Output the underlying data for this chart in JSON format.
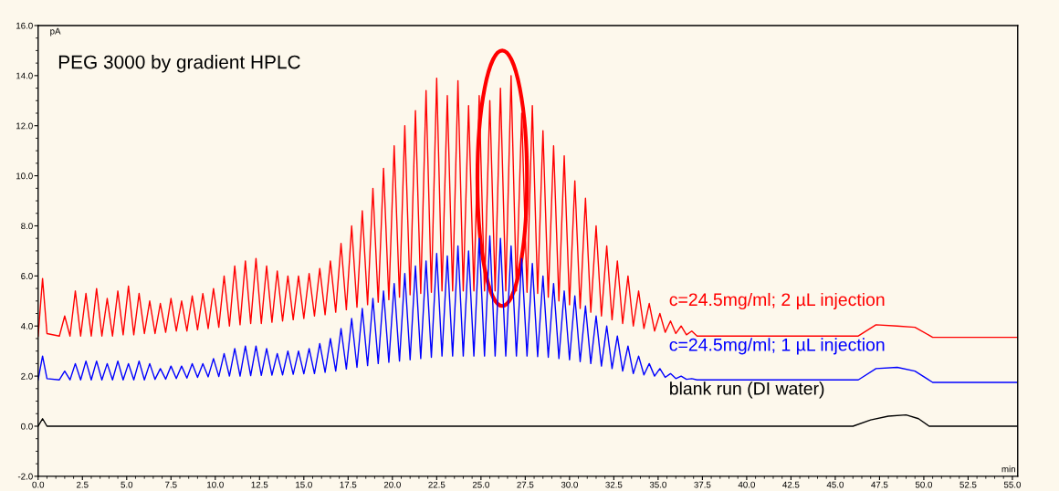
{
  "chart_data": {
    "type": "line",
    "title": "PEG 3000 by gradient HPLC",
    "xlabel": "min",
    "ylabel": "pA",
    "xlim": [
      0,
      55.3
    ],
    "ylim": [
      -2,
      16
    ],
    "xticks": [
      {
        "value": 0,
        "label": "0.0"
      },
      {
        "value": 2.5,
        "label": "2.5"
      },
      {
        "value": 5,
        "label": "5.0"
      },
      {
        "value": 7.5,
        "label": "7.5"
      },
      {
        "value": 10,
        "label": "10.0"
      },
      {
        "value": 12.5,
        "label": "12.5"
      },
      {
        "value": 15,
        "label": "15.0"
      },
      {
        "value": 17.5,
        "label": "17.5"
      },
      {
        "value": 20,
        "label": "20.0"
      },
      {
        "value": 22.5,
        "label": "22.5"
      },
      {
        "value": 25,
        "label": "25.0"
      },
      {
        "value": 27.5,
        "label": "27.5"
      },
      {
        "value": 30,
        "label": "30.0"
      },
      {
        "value": 32.5,
        "label": "32.5"
      },
      {
        "value": 35,
        "label": "35.0"
      },
      {
        "value": 37.5,
        "label": "37.5"
      },
      {
        "value": 40,
        "label": "40.0"
      },
      {
        "value": 42.5,
        "label": "42.5"
      },
      {
        "value": 45,
        "label": "45.0"
      },
      {
        "value": 47.5,
        "label": "47.5"
      },
      {
        "value": 50,
        "label": "50.0"
      },
      {
        "value": 52.5,
        "label": "52.5"
      },
      {
        "value": 55,
        "label": "55.0"
      }
    ],
    "yticks": [
      {
        "value": -2,
        "label": "-2.0"
      },
      {
        "value": 0,
        "label": "0.0"
      },
      {
        "value": 2,
        "label": "2.0"
      },
      {
        "value": 4,
        "label": "4.0"
      },
      {
        "value": 6,
        "label": "6.0"
      },
      {
        "value": 8,
        "label": "8.0"
      },
      {
        "value": 10,
        "label": "10.0"
      },
      {
        "value": 12,
        "label": "12.0"
      },
      {
        "value": 14,
        "label": "14.0"
      },
      {
        "value": 16,
        "label": "16.0"
      }
    ],
    "grid": false,
    "legend": false,
    "marker": "none",
    "line_style": "solid",
    "x": [
      0,
      0.25,
      0.5,
      1.2,
      1.5,
      1.8,
      2.1,
      2.4,
      2.7,
      3.0,
      3.3,
      3.6,
      3.9,
      4.2,
      4.5,
      4.8,
      5.1,
      5.4,
      5.7,
      6.0,
      6.3,
      6.6,
      6.9,
      7.2,
      7.5,
      7.8,
      8.1,
      8.4,
      8.7,
      9.0,
      9.3,
      9.6,
      9.9,
      10.2,
      10.5,
      10.8,
      11.1,
      11.4,
      11.7,
      12.0,
      12.3,
      12.6,
      12.9,
      13.2,
      13.5,
      13.8,
      14.1,
      14.4,
      14.7,
      15.0,
      15.3,
      15.6,
      15.9,
      16.2,
      16.5,
      16.8,
      17.1,
      17.4,
      17.7,
      18.0,
      18.3,
      18.6,
      18.9,
      19.2,
      19.5,
      19.8,
      20.1,
      20.4,
      20.7,
      21.0,
      21.3,
      21.6,
      21.9,
      22.2,
      22.5,
      22.8,
      23.1,
      23.4,
      23.7,
      24.0,
      24.3,
      24.6,
      24.9,
      25.2,
      25.5,
      25.8,
      26.1,
      26.4,
      26.7,
      27.0,
      27.3,
      27.6,
      27.9,
      28.2,
      28.5,
      28.8,
      29.1,
      29.4,
      29.7,
      30.0,
      30.3,
      30.6,
      30.9,
      31.2,
      31.5,
      31.8,
      32.1,
      32.4,
      32.7,
      33.0,
      33.3,
      33.6,
      33.9,
      34.2,
      34.5,
      34.8,
      35.1,
      35.4,
      35.7,
      36.0,
      36.3,
      36.6,
      36.9,
      37.2,
      40.0,
      46.3,
      47.3,
      48.5,
      49.5,
      50.5,
      55.3
    ],
    "series": [
      {
        "name": "c=24.5mg/ml; 2 µL injection",
        "color": "#ff0000",
        "values": [
          3.6,
          5.9,
          3.7,
          3.6,
          4.4,
          3.6,
          5.4,
          3.6,
          5.3,
          3.6,
          5.5,
          3.6,
          5.1,
          3.6,
          5.4,
          3.65,
          5.6,
          3.65,
          5.3,
          3.7,
          5.0,
          3.7,
          4.9,
          3.75,
          5.1,
          3.8,
          5.0,
          3.8,
          5.2,
          3.85,
          5.3,
          3.9,
          5.5,
          3.95,
          6.0,
          4.0,
          6.4,
          4.05,
          6.6,
          4.1,
          6.7,
          4.1,
          6.4,
          4.15,
          6.2,
          4.2,
          6.0,
          4.25,
          6.0,
          4.3,
          6.1,
          4.4,
          6.3,
          4.45,
          6.6,
          4.55,
          7.3,
          4.65,
          8.0,
          4.75,
          8.6,
          4.85,
          9.5,
          4.95,
          10.3,
          5.05,
          11.2,
          5.15,
          12.0,
          5.25,
          12.6,
          5.3,
          13.4,
          5.35,
          13.9,
          5.4,
          13.2,
          5.4,
          13.8,
          5.4,
          12.8,
          5.4,
          13.2,
          5.4,
          13.0,
          5.4,
          13.5,
          5.4,
          14.0,
          5.4,
          12.5,
          5.35,
          12.8,
          5.3,
          11.8,
          5.15,
          11.2,
          5.0,
          10.8,
          4.85,
          9.8,
          4.7,
          9.1,
          4.55,
          8.0,
          4.4,
          7.2,
          4.25,
          6.6,
          4.1,
          6.0,
          4.0,
          5.4,
          3.9,
          4.9,
          3.8,
          4.5,
          3.75,
          4.2,
          3.7,
          4.0,
          3.65,
          3.8,
          3.6,
          3.6,
          3.6,
          4.05,
          4.0,
          3.95,
          3.55,
          3.55
        ]
      },
      {
        "name": "c=24.5mg/ml; 1 µL injection",
        "color": "#0000ff",
        "values": [
          1.85,
          2.8,
          1.9,
          1.85,
          2.2,
          1.85,
          2.5,
          1.85,
          2.6,
          1.85,
          2.6,
          1.85,
          2.5,
          1.85,
          2.6,
          1.85,
          2.5,
          1.85,
          2.6,
          1.85,
          2.5,
          1.87,
          2.3,
          1.88,
          2.4,
          1.9,
          2.4,
          1.92,
          2.5,
          1.95,
          2.5,
          1.97,
          2.7,
          1.98,
          2.9,
          2.0,
          3.1,
          2.0,
          3.2,
          2.02,
          3.2,
          2.03,
          3.1,
          2.04,
          2.9,
          2.05,
          3.0,
          2.07,
          3.0,
          2.09,
          3.1,
          2.1,
          3.3,
          2.15,
          3.5,
          2.2,
          3.9,
          2.28,
          4.3,
          2.35,
          4.7,
          2.42,
          5.1,
          2.5,
          5.4,
          2.55,
          5.7,
          2.6,
          6.1,
          2.65,
          6.4,
          2.7,
          6.6,
          2.75,
          6.9,
          2.8,
          6.8,
          2.8,
          7.2,
          2.8,
          7.0,
          2.8,
          7.5,
          2.8,
          7.6,
          2.8,
          7.5,
          2.8,
          7.2,
          2.8,
          6.7,
          2.8,
          6.5,
          2.78,
          6.0,
          2.75,
          5.7,
          2.7,
          5.4,
          2.65,
          5.2,
          2.58,
          4.8,
          2.5,
          4.4,
          2.4,
          4.0,
          2.3,
          3.6,
          2.2,
          3.2,
          2.1,
          2.8,
          2.05,
          2.5,
          2.0,
          2.3,
          1.95,
          2.1,
          1.9,
          2.0,
          1.87,
          1.9,
          1.85,
          1.85,
          1.85,
          2.3,
          2.35,
          2.2,
          1.75,
          1.75
        ]
      },
      {
        "name": "blank run (DI water)",
        "color": "#000000",
        "x": [
          0,
          0.25,
          0.5,
          46.0,
          47.0,
          48.0,
          49.0,
          49.7,
          50.3,
          55.3
        ],
        "values": [
          0,
          0.3,
          0,
          0,
          0.25,
          0.4,
          0.45,
          0.3,
          0,
          0
        ]
      }
    ]
  }
}
